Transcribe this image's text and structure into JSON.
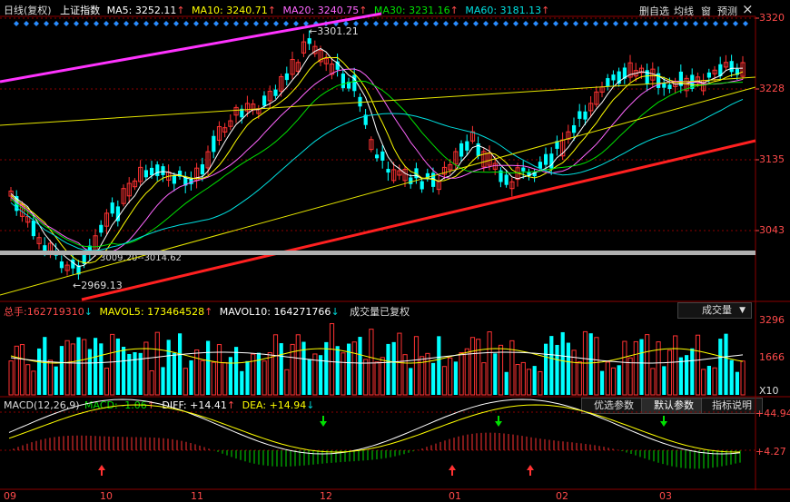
{
  "header": {
    "period": "日线(复权)",
    "index_name": "上证指数",
    "ma5": {
      "label": "MA5:",
      "value": "3252.11",
      "arrow": "↑",
      "color": "#ffffff"
    },
    "ma10": {
      "label": "MA10:",
      "value": "3240.71",
      "arrow": "↑",
      "color": "#ffff00"
    },
    "ma20": {
      "label": "MA20:",
      "value": "3240.75",
      "arrow": "↑",
      "color": "#ff66ff"
    },
    "ma30": {
      "label": "MA30:",
      "value": "3231.16",
      "arrow": "↑",
      "color": "#00e000"
    },
    "ma60": {
      "label": "MA60:",
      "value": "3181.13",
      "arrow": "↑",
      "color": "#00e0e0"
    },
    "buttons": [
      "删自选",
      "均线",
      "窗",
      "预测"
    ],
    "close_glyph": "×"
  },
  "price_axis": {
    "labels": [
      "3320",
      "3228",
      "3135",
      "3043"
    ],
    "color": "#ff4a4a"
  },
  "annotations": {
    "high": "3301.21",
    "low": "2969.13",
    "gap": "3009.20--3014.62"
  },
  "volume": {
    "total_label": "总手:",
    "total_value": "162719310",
    "total_arrow": "↓",
    "mavol5_label": "MAVOL5:",
    "mavol5_value": "173464528",
    "mavol5_arrow": "↑",
    "mavol10_label": "MAVOL10:",
    "mavol10_value": "164271766",
    "mavol10_arrow": "↓",
    "note": "成交量已复权",
    "selector": "成交量",
    "axis_labels": [
      "3296",
      "1666"
    ],
    "unit": "X10"
  },
  "macd": {
    "name": "MACD(12,26,9)",
    "macd_label": "MACD:",
    "macd_value": "-1.06",
    "macd_arrow": "↑",
    "diff_label": "DIFF:",
    "diff_value": "+14.41",
    "diff_arrow": "↑",
    "dea_label": "DEA:",
    "dea_value": "+14.94",
    "dea_arrow": "↓",
    "buttons": [
      "优选参数",
      "默认参数",
      "指标说明"
    ],
    "axis_labels": [
      "+44.94",
      "+4.27"
    ]
  },
  "time_axis": {
    "labels": [
      "09",
      "10",
      "11",
      "12",
      "01",
      "02",
      "03"
    ]
  },
  "colors": {
    "up": "#ff3232",
    "down": "#00ffff",
    "grid": "#8b0000"
  }
}
